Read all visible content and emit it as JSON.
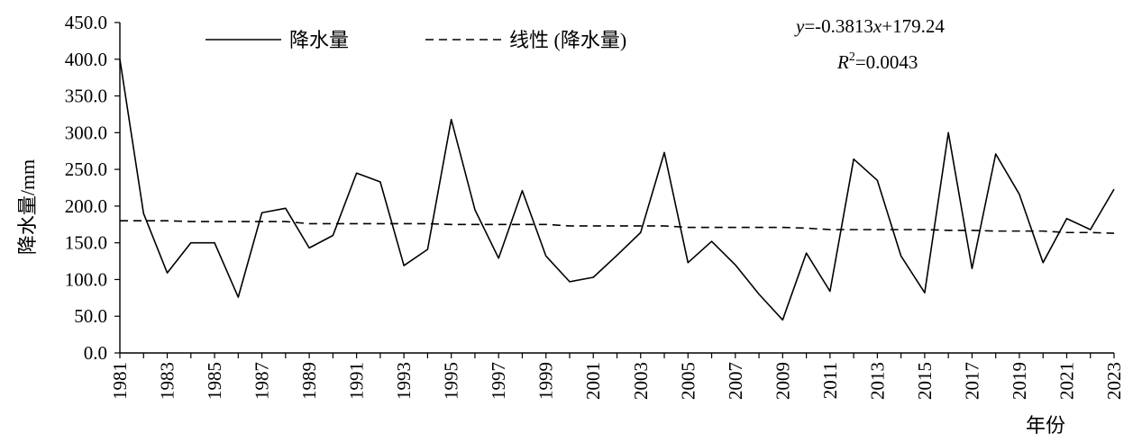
{
  "chart_data": {
    "type": "line",
    "title": "",
    "ylabel": "降水量/mm",
    "xlabel": "年份",
    "ylim": [
      0,
      450
    ],
    "yticks": [
      "0.0",
      "50.0",
      "100.0",
      "150.0",
      "200.0",
      "250.0",
      "300.0",
      "350.0",
      "400.0",
      "450.0"
    ],
    "x_tick_labels": [
      "1981",
      "1983",
      "1985",
      "1987",
      "1989",
      "1991",
      "1993",
      "1995",
      "1997",
      "1999",
      "2001",
      "2003",
      "2005",
      "2007",
      "2009",
      "2011",
      "2013",
      "2015",
      "2017",
      "2019",
      "2021",
      "2023"
    ],
    "x": [
      1981,
      1982,
      1983,
      1984,
      1985,
      1986,
      1987,
      1988,
      1989,
      1990,
      1991,
      1992,
      1993,
      1994,
      1995,
      1996,
      1997,
      1998,
      1999,
      2000,
      2001,
      2002,
      2003,
      2004,
      2005,
      2006,
      2007,
      2008,
      2009,
      2010,
      2011,
      2012,
      2013,
      2014,
      2015,
      2016,
      2017,
      2018,
      2019,
      2020,
      2021,
      2022,
      2023
    ],
    "series": [
      {
        "name": "降水量",
        "style": "solid",
        "values": [
          400,
          190,
          109,
          150,
          150,
          76,
          191,
          197,
          143,
          160,
          245,
          233,
          119,
          141,
          318,
          195,
          129,
          221,
          132,
          97,
          103,
          133,
          164,
          273,
          123,
          152,
          120,
          80,
          45,
          136,
          84,
          264,
          235,
          132,
          82,
          300,
          115,
          271,
          216,
          123,
          183,
          168,
          223
        ]
      },
      {
        "name": "线性 (降水量)",
        "style": "dashed",
        "values": [
          180,
          180,
          180,
          179,
          179,
          179,
          179,
          179,
          176,
          176,
          176,
          176,
          176,
          176,
          175,
          175,
          175,
          175,
          175,
          173,
          173,
          173,
          173,
          173,
          171,
          171,
          171,
          171,
          171,
          170,
          168,
          168,
          168,
          168,
          168,
          167,
          167,
          166,
          166,
          166,
          164,
          164,
          163
        ]
      }
    ],
    "legend": {
      "placement": "top"
    },
    "annotation": {
      "equation_y": "y",
      "equation_rest": "=-0.3813",
      "equation_x": "x",
      "equation_const": "+179.24",
      "r2_letter": "R",
      "r2_exp": "2",
      "r2_value": "=0.0043"
    },
    "grid": false
  }
}
